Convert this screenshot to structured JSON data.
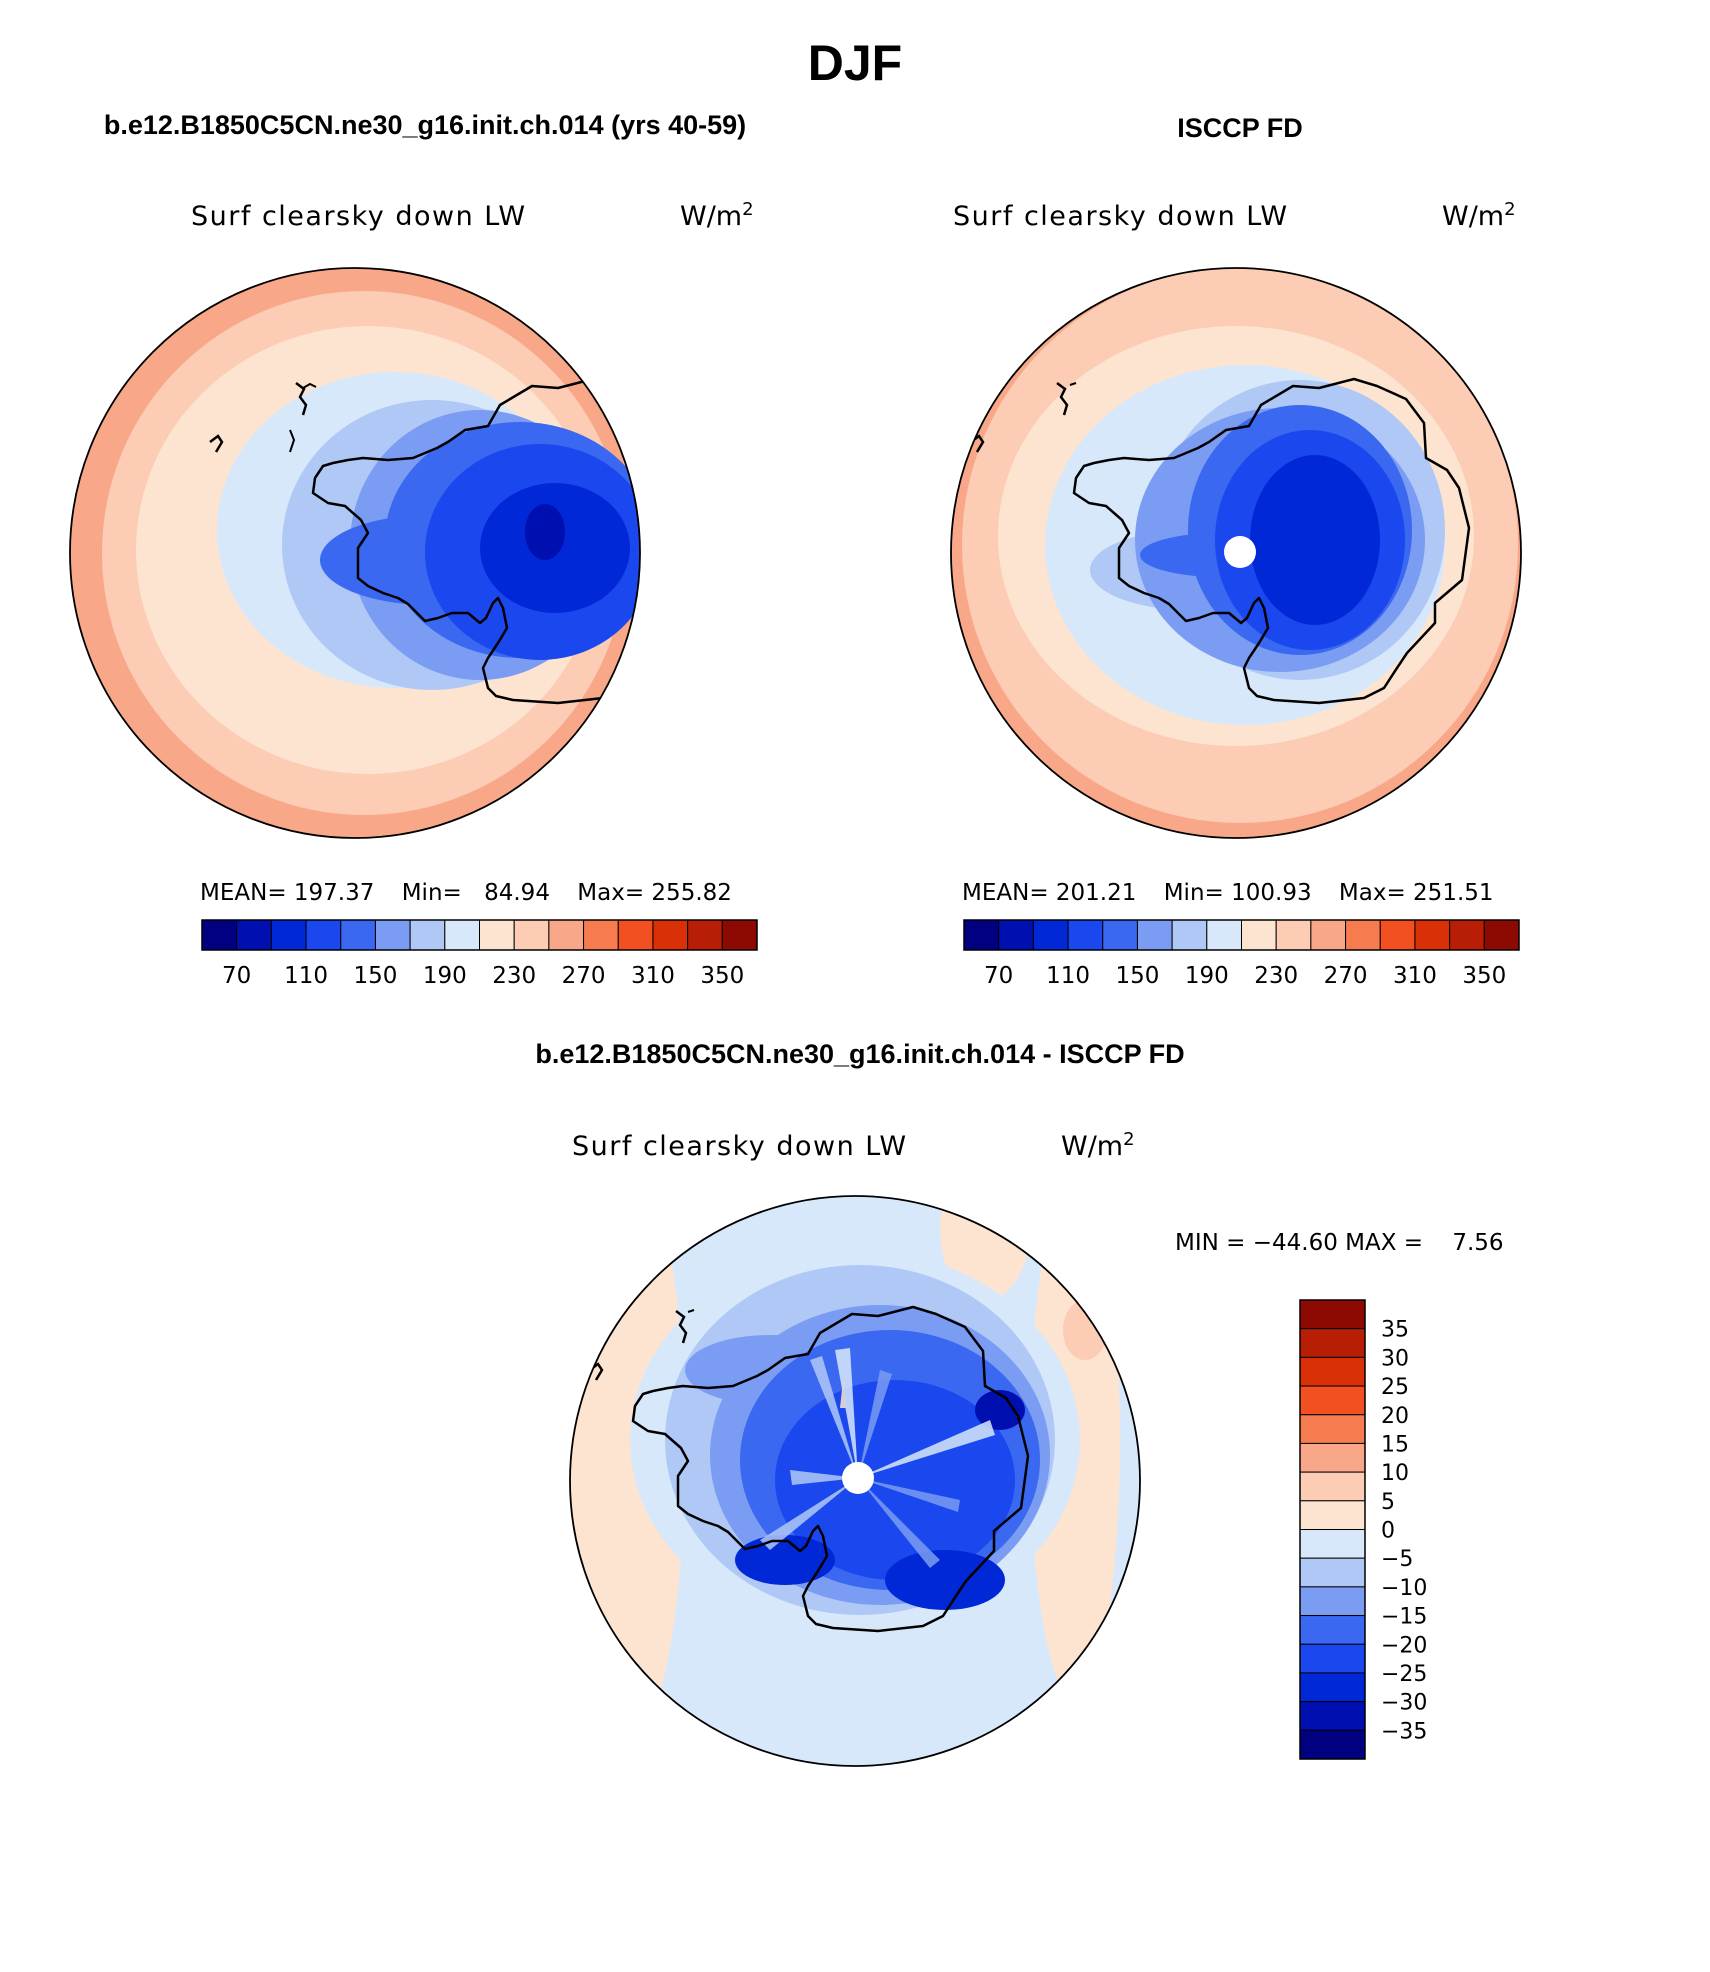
{
  "figure_title": "DJF",
  "panels": [
    {
      "id": "model",
      "header": "b.e12.B1850C5CN.ne30_g16.init.ch.014 (yrs 40-59)",
      "variable": "Surf clearsky down LW",
      "units": "W/m",
      "units_sup": "2",
      "stats": {
        "mean_label": "MEAN=",
        "mean": "197.37",
        "min_label": "Min=",
        "min": "84.94",
        "max_label": "Max=",
        "max": "255.82"
      },
      "pole_hole": false
    },
    {
      "id": "obs",
      "header": "ISCCP FD",
      "variable": "Surf clearsky down LW",
      "units": "W/m",
      "units_sup": "2",
      "stats": {
        "mean_label": "MEAN=",
        "mean": "201.21",
        "min_label": "Min=",
        "min": "100.93",
        "max_label": "Max=",
        "max": "251.51"
      },
      "pole_hole": true
    },
    {
      "id": "diff",
      "header": "b.e12.B1850C5CN.ne30_g16.init.ch.014 - ISCCP FD",
      "variable": "Surf clearsky down LW",
      "units": "W/m",
      "units_sup": "2",
      "stats_text": "MIN = −44.60 MAX =    7.56",
      "pole_hole": true
    }
  ],
  "colorbar_abs": {
    "orientation": "horizontal",
    "colors": [
      "#000080",
      "#0010b0",
      "#0028d6",
      "#1a48ee",
      "#3a68f0",
      "#7a9cf2",
      "#b0c8f6",
      "#d8e8fb",
      "#fde4d0",
      "#fcccb4",
      "#f8a888",
      "#f67c50",
      "#f25020",
      "#da3008",
      "#b81e06",
      "#8c0a02"
    ],
    "tick_labels": [
      "70",
      "110",
      "150",
      "190",
      "230",
      "270",
      "310",
      "350"
    ]
  },
  "colorbar_diff": {
    "orientation": "vertical",
    "colors_top_to_bottom": [
      "#8c0a02",
      "#b81e06",
      "#da3008",
      "#f25020",
      "#f67c50",
      "#f8a888",
      "#fcccb4",
      "#fde4d0",
      "#d8e8fb",
      "#b0c8f6",
      "#7a9cf2",
      "#3a68f0",
      "#1a48ee",
      "#0028d6",
      "#0010b0",
      "#000080"
    ],
    "tick_labels_top_to_bottom": [
      "35",
      "30",
      "25",
      "20",
      "15",
      "10",
      "5",
      "0",
      "−5",
      "−10",
      "−15",
      "−20",
      "−25",
      "−30",
      "−35"
    ]
  }
}
